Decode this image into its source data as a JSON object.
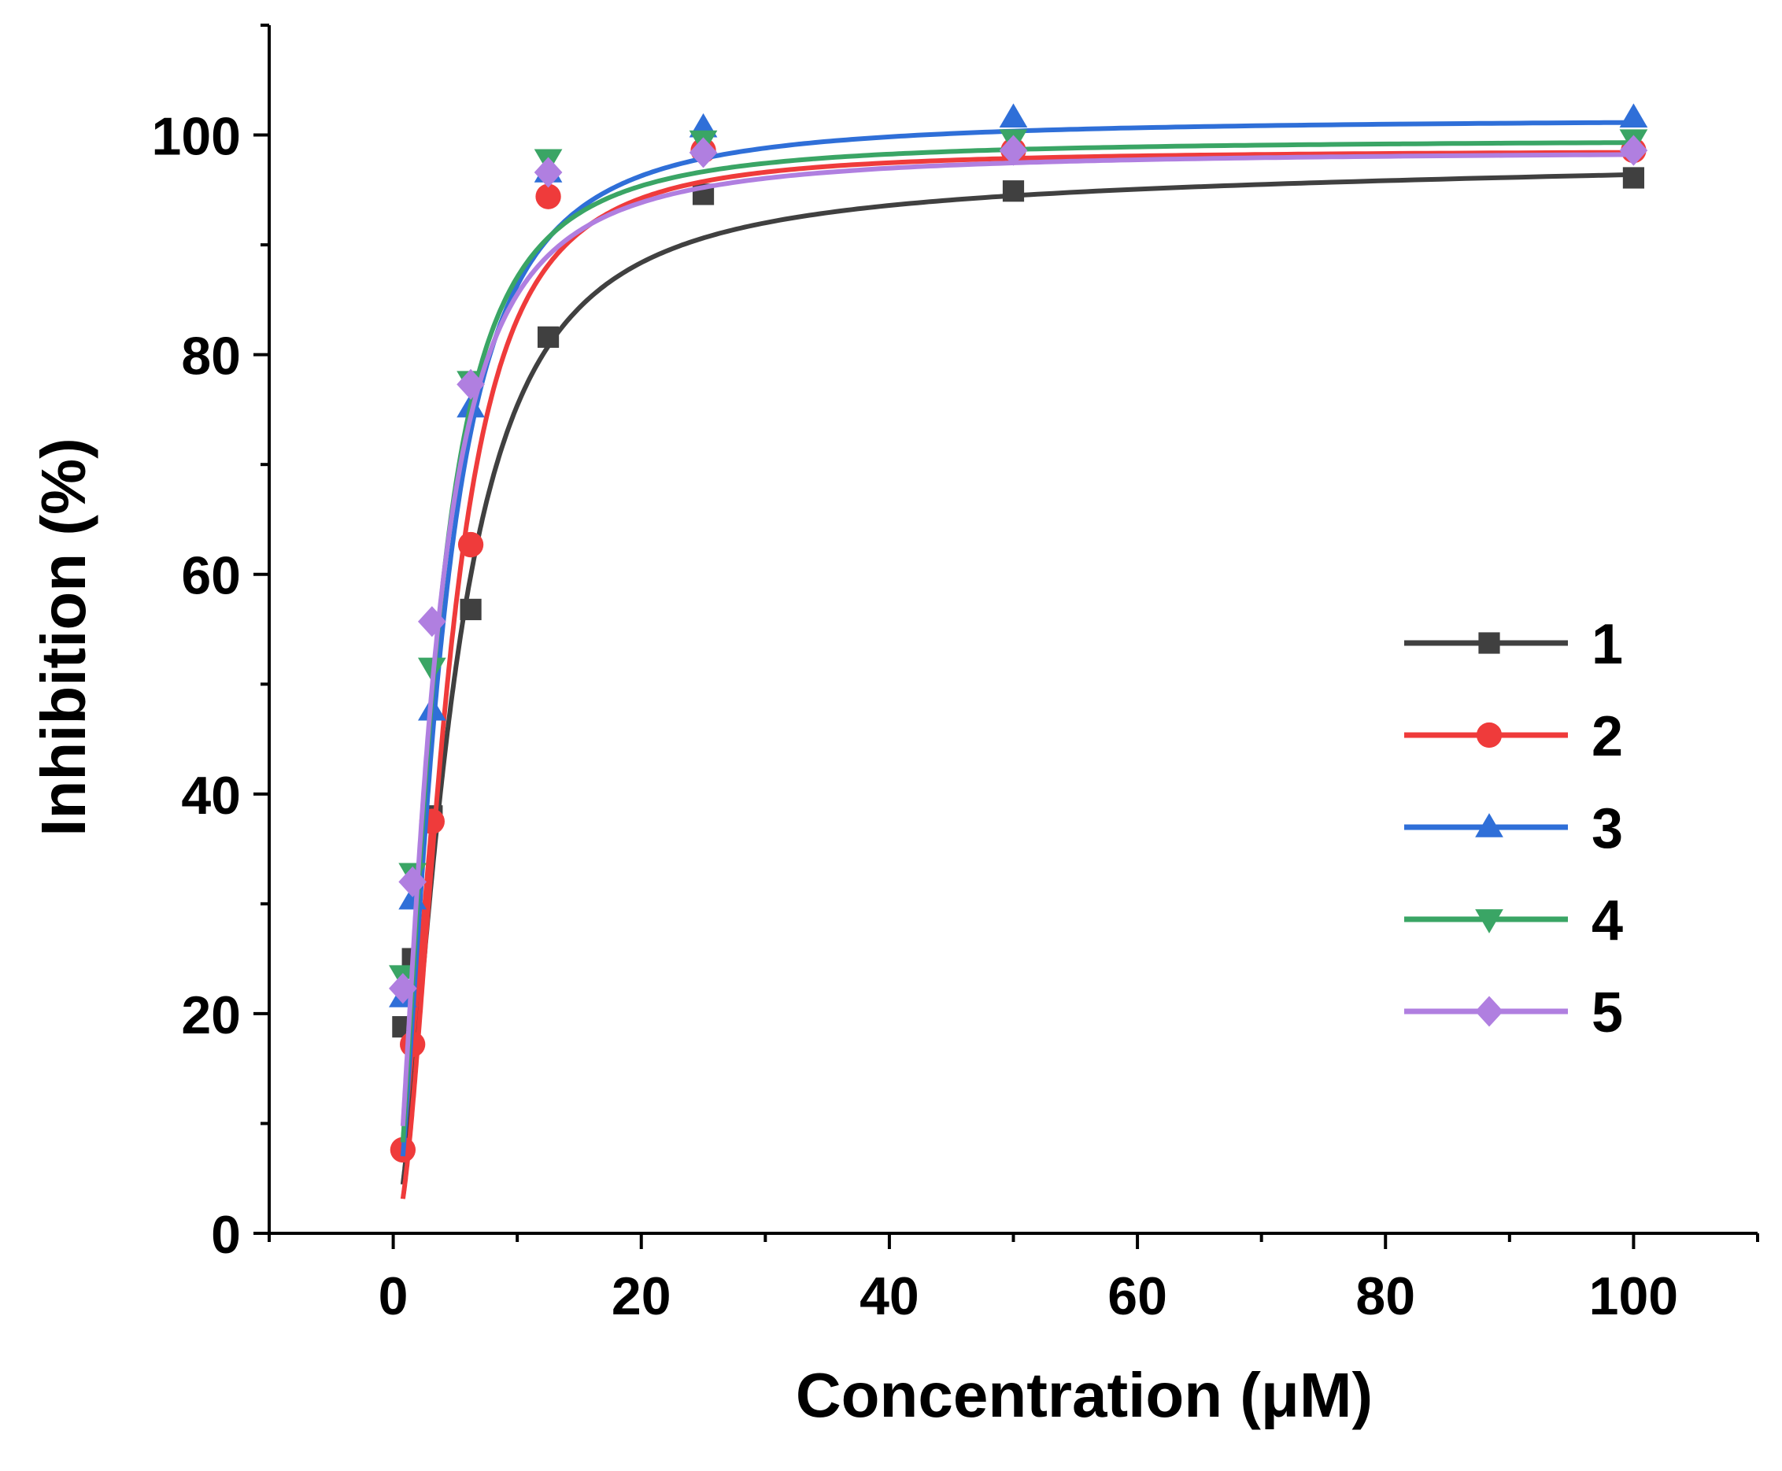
{
  "chart_data": {
    "type": "scatter",
    "title": "",
    "xlabel": "Concentration (μM)",
    "ylabel": "Inhibition (%)",
    "xlim": [
      -10,
      110
    ],
    "ylim": [
      0,
      110
    ],
    "x_ticks": [
      0,
      20,
      40,
      60,
      80,
      100
    ],
    "y_ticks": [
      0,
      20,
      40,
      60,
      80,
      100
    ],
    "x_tick_labels": [
      "0",
      "20",
      "40",
      "60",
      "80",
      "100"
    ],
    "y_tick_labels": [
      "0",
      "20",
      "40",
      "60",
      "80",
      "100"
    ],
    "grid": false,
    "legend_position": "right",
    "x": [
      0.78,
      1.56,
      3.125,
      6.25,
      12.5,
      25,
      50,
      100
    ],
    "series": [
      {
        "name": "1",
        "color": "#404040",
        "marker": "square",
        "values": [
          18.8,
          25.0,
          38.0,
          56.8,
          81.6,
          94.6,
          94.9,
          96.1
        ],
        "fit": {
          "bottom": 0,
          "top": 95.3,
          "slope": 0.016,
          "ec50": 4.6,
          "hill": 1.7
        }
      },
      {
        "name": "2",
        "color": "#ef3b3b",
        "marker": "circle",
        "values": [
          7.6,
          17.2,
          37.5,
          62.7,
          94.4,
          98.6,
          98.6,
          98.6
        ],
        "fit": {
          "bottom": 0,
          "top": 98.6,
          "slope": 0,
          "ec50": 4.3,
          "hill": 2.0
        }
      },
      {
        "name": "3",
        "color": "#2f6fd8",
        "marker": "triangle-up",
        "values": [
          21.5,
          30.4,
          47.6,
          75.2,
          96.6,
          100.7,
          101.6,
          101.6
        ],
        "fit": {
          "bottom": 0,
          "top": 101.5,
          "slope": 0,
          "ec50": 3.6,
          "hill": 1.7
        }
      },
      {
        "name": "4",
        "color": "#3aa565",
        "marker": "triangle-down",
        "values": [
          23.5,
          32.8,
          51.5,
          77.6,
          97.8,
          99.5,
          99.6,
          99.6
        ],
        "fit": {
          "bottom": 0,
          "top": 99.6,
          "slope": 0,
          "ec50": 3.2,
          "hill": 1.7
        }
      },
      {
        "name": "5",
        "color": "#b07fe0",
        "marker": "diamond",
        "values": [
          22.3,
          32.0,
          55.7,
          77.3,
          96.6,
          98.4,
          98.6,
          98.6
        ],
        "fit": {
          "bottom": 0,
          "top": 98.6,
          "slope": 0,
          "ec50": 3.1,
          "hill": 1.6
        }
      }
    ]
  }
}
